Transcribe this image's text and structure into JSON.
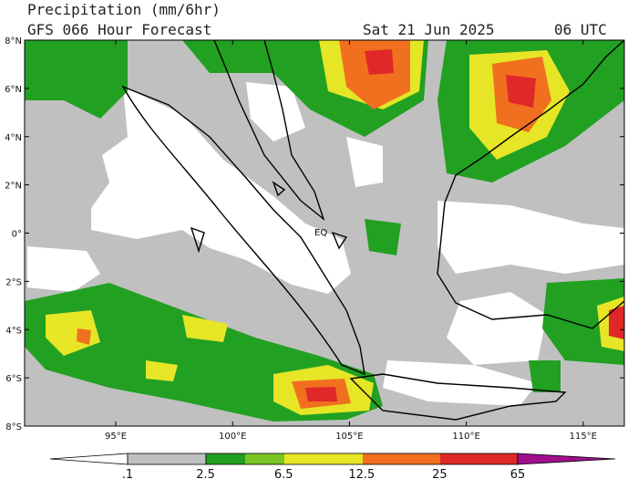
{
  "header": {
    "title": "Precipitation (mm/6hr)",
    "forecast": "GFS 066 Hour Forecast",
    "date": "Sat 21 Jun 2025",
    "time": "06 UTC"
  },
  "map": {
    "lat_labels": [
      "8°N",
      "6°N",
      "4°N",
      "2°N",
      "0°",
      "2°S",
      "4°S",
      "6°S",
      "8°S"
    ],
    "lon_labels": [
      "95°E",
      "100°E",
      "105°E",
      "110°E",
      "115°E"
    ],
    "annotation": "EQ"
  },
  "colorbar": {
    "labels": [
      ".1",
      "2.5",
      "6.5",
      "12.5",
      "25",
      "65"
    ]
  }
}
